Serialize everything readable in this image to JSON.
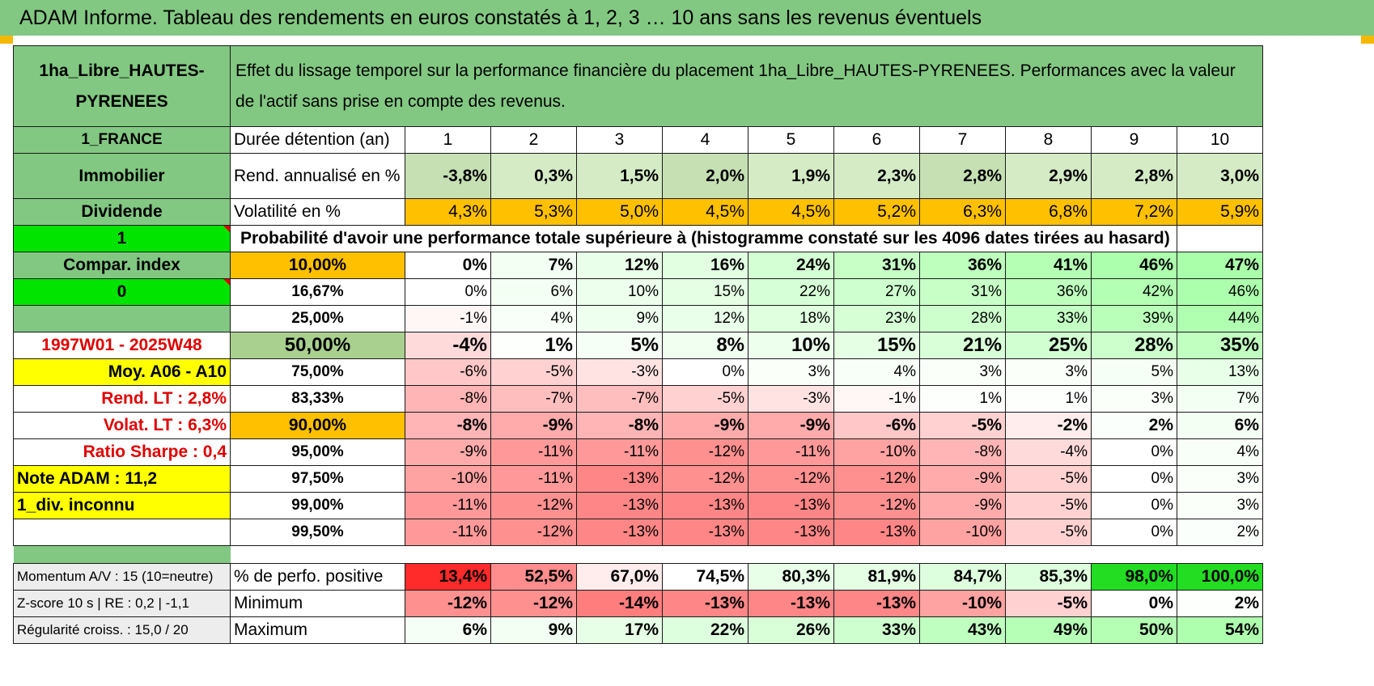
{
  "title": "ADAM Informe. Tableau des rendements en euros constatés à 1, 2, 3 … 10 ans sans les revenus éventuels",
  "asset_name": "1ha_Libre_HAUTES-PYRENEES",
  "description": "Effet du lissage temporel sur la performance financière du placement 1ha_Libre_HAUTES-PYRENEES. Performances avec la valeur de l'actif sans prise en compte des revenus.",
  "side": {
    "country": "1_FRANCE",
    "category": "Immobilier",
    "income_type": "Dividende",
    "flag1": "1",
    "compar_index": "Compar. index",
    "flag2": "0",
    "period": "1997W01 - 2025W48",
    "moy": "Moy. A06 - A10",
    "rend_lt": "Rend. LT :    2,8%",
    "volat_lt": "Volat. LT :    6,3%",
    "sharpe": "Ratio Sharpe :     0,4",
    "note": "Note ADAM : 11,2",
    "div": "1_div. inconnu",
    "momentum": "Momentum A/V : 15 (10=neutre)",
    "zscore": "Z-score 10 s | RE : 0,2 | -1,1",
    "regularite": "Régularité croiss. : 15,0 / 20"
  },
  "row_labels": {
    "duree": "Durée détention (an)",
    "rend": "Rend. annualisé en %",
    "vol": "Volatilité en %",
    "proba": "Probabilité d'avoir une performance totale supérieure à (histogramme constaté sur les 4096 dates tirées au hasard)",
    "pos": "% de perfo. positive",
    "min": "Minimum",
    "max": "Maximum"
  },
  "years": [
    "1",
    "2",
    "3",
    "4",
    "5",
    "6",
    "7",
    "8",
    "9",
    "10"
  ],
  "rend": [
    "-3,8%",
    "0,3%",
    "1,5%",
    "2,0%",
    "1,9%",
    "2,3%",
    "2,8%",
    "2,9%",
    "2,8%",
    "3,0%"
  ],
  "vol": [
    "4,3%",
    "5,3%",
    "5,0%",
    "4,5%",
    "4,5%",
    "5,2%",
    "6,3%",
    "6,8%",
    "7,2%",
    "5,9%"
  ],
  "quantiles": [
    {
      "p": "10,00%",
      "vals": [
        "0%",
        "7%",
        "12%",
        "16%",
        "24%",
        "31%",
        "36%",
        "41%",
        "46%",
        "47%"
      ]
    },
    {
      "p": "16,67%",
      "vals": [
        "0%",
        "6%",
        "10%",
        "15%",
        "22%",
        "27%",
        "31%",
        "36%",
        "42%",
        "46%"
      ]
    },
    {
      "p": "25,00%",
      "vals": [
        "-1%",
        "4%",
        "9%",
        "12%",
        "18%",
        "23%",
        "28%",
        "33%",
        "39%",
        "44%"
      ]
    },
    {
      "p": "50,00%",
      "vals": [
        "-4%",
        "1%",
        "5%",
        "8%",
        "10%",
        "15%",
        "21%",
        "25%",
        "28%",
        "35%"
      ]
    },
    {
      "p": "75,00%",
      "vals": [
        "-6%",
        "-5%",
        "-3%",
        "0%",
        "3%",
        "4%",
        "3%",
        "3%",
        "5%",
        "13%"
      ]
    },
    {
      "p": "83,33%",
      "vals": [
        "-8%",
        "-7%",
        "-7%",
        "-5%",
        "-3%",
        "-1%",
        "1%",
        "1%",
        "3%",
        "7%"
      ]
    },
    {
      "p": "90,00%",
      "vals": [
        "-8%",
        "-9%",
        "-8%",
        "-9%",
        "-9%",
        "-6%",
        "-5%",
        "-2%",
        "2%",
        "6%"
      ]
    },
    {
      "p": "95,00%",
      "vals": [
        "-9%",
        "-11%",
        "-11%",
        "-12%",
        "-11%",
        "-10%",
        "-8%",
        "-4%",
        "0%",
        "4%"
      ]
    },
    {
      "p": "97,50%",
      "vals": [
        "-10%",
        "-11%",
        "-13%",
        "-12%",
        "-12%",
        "-12%",
        "-9%",
        "-5%",
        "0%",
        "3%"
      ]
    },
    {
      "p": "99,00%",
      "vals": [
        "-11%",
        "-12%",
        "-13%",
        "-13%",
        "-13%",
        "-12%",
        "-9%",
        "-5%",
        "0%",
        "3%"
      ]
    },
    {
      "p": "99,50%",
      "vals": [
        "-11%",
        "-12%",
        "-13%",
        "-13%",
        "-13%",
        "-13%",
        "-10%",
        "-5%",
        "0%",
        "2%"
      ]
    }
  ],
  "pos": [
    "13,4%",
    "52,5%",
    "67,0%",
    "74,5%",
    "80,3%",
    "81,9%",
    "84,7%",
    "85,3%",
    "98,0%",
    "100,0%"
  ],
  "min": [
    "-12%",
    "-12%",
    "-14%",
    "-13%",
    "-13%",
    "-13%",
    "-10%",
    "-5%",
    "0%",
    "2%"
  ],
  "max": [
    "6%",
    "9%",
    "17%",
    "22%",
    "26%",
    "33%",
    "43%",
    "49%",
    "50%",
    "54%"
  ],
  "colors": {
    "header_green": "#82c882",
    "light_green": "#c6e0b4",
    "orange": "#ffc000",
    "lime": "#00e400",
    "yellow": "#ffff00",
    "red_text": "#e00000"
  }
}
